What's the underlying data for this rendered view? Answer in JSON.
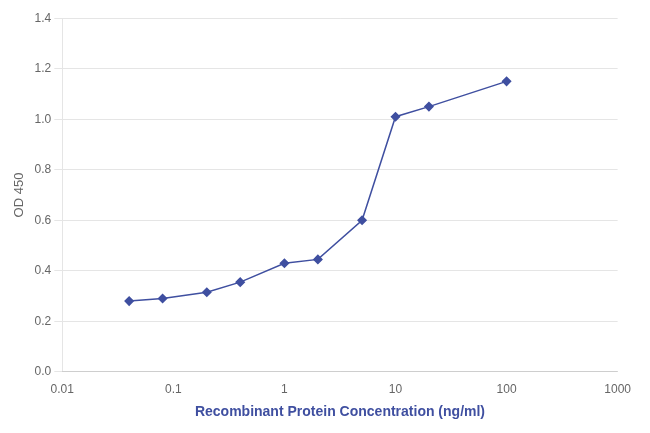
{
  "chart_data": {
    "type": "line",
    "x": [
      0.04,
      0.08,
      0.2,
      0.4,
      1.0,
      2.0,
      5.0,
      10.0,
      20.0,
      100.0
    ],
    "values": [
      0.28,
      0.29,
      0.315,
      0.355,
      0.43,
      0.445,
      0.6,
      1.01,
      1.05,
      1.15
    ],
    "color": "#3F4FA0",
    "marker": "diamond",
    "line_style": "solid",
    "x_label": "Recombinant Protein Concentration (ng/ml)",
    "y_label": "OD 450",
    "log": "x",
    "xlim": [
      0.01,
      1000
    ],
    "xticks": [
      0.01,
      0.1,
      1,
      10,
      100,
      1000
    ],
    "ylim": [
      0.0,
      1.4
    ],
    "yticks": [
      {
        "value": 0.0,
        "label": "0.0"
      },
      0.2,
      0.4,
      0.6,
      0.8,
      {
        "value": 1.0,
        "label": "1.0"
      },
      1.2,
      1.4
    ],
    "grid": "y"
  }
}
